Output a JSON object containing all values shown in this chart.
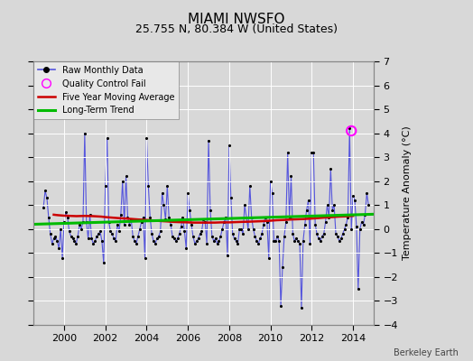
{
  "title": "MIAMI NWSFO",
  "subtitle": "25.755 N, 80.384 W (United States)",
  "credit": "Berkeley Earth",
  "ylabel": "Temperature Anomaly (°C)",
  "xlim": [
    1998.5,
    2015.0
  ],
  "ylim": [
    -4,
    7
  ],
  "yticks": [
    -4,
    -3,
    -2,
    -1,
    0,
    1,
    2,
    3,
    4,
    5,
    6,
    7
  ],
  "xticks": [
    2000,
    2002,
    2004,
    2006,
    2008,
    2010,
    2012,
    2014
  ],
  "background_color": "#d8d8d8",
  "plot_bg_color": "#d8d8d8",
  "grid_color": "#ffffff",
  "raw_color": "#5555dd",
  "dot_color": "#000000",
  "moving_avg_color": "#cc0000",
  "trend_color": "#00bb00",
  "qc_fail_color": "#ff00ff",
  "raw_monthly": [
    [
      1999.0,
      0.9
    ],
    [
      1999.083,
      1.6
    ],
    [
      1999.167,
      1.3
    ],
    [
      1999.25,
      0.5
    ],
    [
      1999.333,
      -0.2
    ],
    [
      1999.417,
      -0.6
    ],
    [
      1999.5,
      -0.4
    ],
    [
      1999.583,
      -0.3
    ],
    [
      1999.667,
      -0.5
    ],
    [
      1999.75,
      -0.8
    ],
    [
      1999.833,
      0.0
    ],
    [
      1999.917,
      -1.2
    ],
    [
      2000.0,
      0.3
    ],
    [
      2000.083,
      0.7
    ],
    [
      2000.167,
      0.5
    ],
    [
      2000.25,
      -0.1
    ],
    [
      2000.333,
      -0.3
    ],
    [
      2000.417,
      -0.4
    ],
    [
      2000.5,
      -0.5
    ],
    [
      2000.583,
      -0.6
    ],
    [
      2000.667,
      -0.3
    ],
    [
      2000.75,
      0.2
    ],
    [
      2000.833,
      0.0
    ],
    [
      2000.917,
      0.3
    ],
    [
      2001.0,
      4.0
    ],
    [
      2001.083,
      0.3
    ],
    [
      2001.167,
      -0.4
    ],
    [
      2001.25,
      0.6
    ],
    [
      2001.333,
      -0.4
    ],
    [
      2001.417,
      -0.6
    ],
    [
      2001.5,
      -0.5
    ],
    [
      2001.583,
      -0.3
    ],
    [
      2001.667,
      -0.2
    ],
    [
      2001.75,
      -0.1
    ],
    [
      2001.833,
      -0.5
    ],
    [
      2001.917,
      -1.4
    ],
    [
      2002.0,
      1.8
    ],
    [
      2002.083,
      3.8
    ],
    [
      2002.167,
      0.3
    ],
    [
      2002.25,
      -0.1
    ],
    [
      2002.333,
      -0.2
    ],
    [
      2002.417,
      -0.4
    ],
    [
      2002.5,
      -0.5
    ],
    [
      2002.583,
      0.2
    ],
    [
      2002.667,
      -0.1
    ],
    [
      2002.75,
      0.6
    ],
    [
      2002.833,
      2.0
    ],
    [
      2002.917,
      0.2
    ],
    [
      2003.0,
      2.2
    ],
    [
      2003.083,
      0.5
    ],
    [
      2003.167,
      0.2
    ],
    [
      2003.25,
      0.4
    ],
    [
      2003.333,
      -0.3
    ],
    [
      2003.417,
      -0.5
    ],
    [
      2003.5,
      -0.6
    ],
    [
      2003.583,
      -0.3
    ],
    [
      2003.667,
      0.0
    ],
    [
      2003.75,
      0.3
    ],
    [
      2003.833,
      0.5
    ],
    [
      2003.917,
      -1.2
    ],
    [
      2004.0,
      3.8
    ],
    [
      2004.083,
      1.8
    ],
    [
      2004.167,
      0.5
    ],
    [
      2004.25,
      -0.2
    ],
    [
      2004.333,
      -0.5
    ],
    [
      2004.417,
      -0.6
    ],
    [
      2004.5,
      -0.4
    ],
    [
      2004.583,
      -0.3
    ],
    [
      2004.667,
      -0.1
    ],
    [
      2004.75,
      1.5
    ],
    [
      2004.833,
      1.0
    ],
    [
      2004.917,
      0.4
    ],
    [
      2005.0,
      1.8
    ],
    [
      2005.083,
      0.5
    ],
    [
      2005.167,
      0.2
    ],
    [
      2005.25,
      -0.3
    ],
    [
      2005.333,
      -0.4
    ],
    [
      2005.417,
      -0.5
    ],
    [
      2005.5,
      -0.4
    ],
    [
      2005.583,
      -0.2
    ],
    [
      2005.667,
      0.1
    ],
    [
      2005.75,
      0.5
    ],
    [
      2005.833,
      -0.1
    ],
    [
      2005.917,
      -0.8
    ],
    [
      2006.0,
      1.5
    ],
    [
      2006.083,
      0.8
    ],
    [
      2006.167,
      0.2
    ],
    [
      2006.25,
      -0.3
    ],
    [
      2006.333,
      -0.6
    ],
    [
      2006.417,
      -0.5
    ],
    [
      2006.5,
      -0.4
    ],
    [
      2006.583,
      -0.2
    ],
    [
      2006.667,
      -0.1
    ],
    [
      2006.75,
      0.4
    ],
    [
      2006.833,
      0.3
    ],
    [
      2006.917,
      -0.6
    ],
    [
      2007.0,
      3.7
    ],
    [
      2007.083,
      0.8
    ],
    [
      2007.167,
      -0.3
    ],
    [
      2007.25,
      -0.5
    ],
    [
      2007.333,
      -0.4
    ],
    [
      2007.417,
      -0.6
    ],
    [
      2007.5,
      -0.5
    ],
    [
      2007.583,
      -0.3
    ],
    [
      2007.667,
      0.0
    ],
    [
      2007.75,
      0.3
    ],
    [
      2007.833,
      0.5
    ],
    [
      2007.917,
      -1.1
    ],
    [
      2008.0,
      3.5
    ],
    [
      2008.083,
      1.3
    ],
    [
      2008.167,
      -0.2
    ],
    [
      2008.25,
      -0.4
    ],
    [
      2008.333,
      -0.5
    ],
    [
      2008.417,
      -0.6
    ],
    [
      2008.5,
      0.0
    ],
    [
      2008.583,
      0.0
    ],
    [
      2008.667,
      -0.2
    ],
    [
      2008.75,
      1.0
    ],
    [
      2008.833,
      0.5
    ],
    [
      2008.917,
      0.0
    ],
    [
      2009.0,
      1.8
    ],
    [
      2009.083,
      0.5
    ],
    [
      2009.167,
      0.0
    ],
    [
      2009.25,
      -0.3
    ],
    [
      2009.333,
      -0.5
    ],
    [
      2009.417,
      -0.6
    ],
    [
      2009.5,
      -0.4
    ],
    [
      2009.583,
      -0.2
    ],
    [
      2009.667,
      0.2
    ],
    [
      2009.75,
      0.5
    ],
    [
      2009.833,
      0.3
    ],
    [
      2009.917,
      -1.2
    ],
    [
      2010.0,
      2.0
    ],
    [
      2010.083,
      1.5
    ],
    [
      2010.167,
      -0.5
    ],
    [
      2010.25,
      -0.5
    ],
    [
      2010.333,
      -0.3
    ],
    [
      2010.417,
      -0.5
    ],
    [
      2010.5,
      -3.2
    ],
    [
      2010.583,
      -1.6
    ],
    [
      2010.667,
      -0.3
    ],
    [
      2010.75,
      0.3
    ],
    [
      2010.833,
      3.2
    ],
    [
      2010.917,
      0.5
    ],
    [
      2011.0,
      2.2
    ],
    [
      2011.083,
      -0.2
    ],
    [
      2011.167,
      -0.5
    ],
    [
      2011.25,
      -0.4
    ],
    [
      2011.333,
      -0.5
    ],
    [
      2011.417,
      -0.6
    ],
    [
      2011.5,
      -3.3
    ],
    [
      2011.583,
      -0.5
    ],
    [
      2011.667,
      0.2
    ],
    [
      2011.75,
      0.8
    ],
    [
      2011.833,
      1.2
    ],
    [
      2011.917,
      -0.6
    ],
    [
      2012.0,
      3.2
    ],
    [
      2012.083,
      3.2
    ],
    [
      2012.167,
      0.2
    ],
    [
      2012.25,
      -0.2
    ],
    [
      2012.333,
      -0.4
    ],
    [
      2012.417,
      -0.5
    ],
    [
      2012.5,
      -0.3
    ],
    [
      2012.583,
      -0.2
    ],
    [
      2012.667,
      0.3
    ],
    [
      2012.75,
      1.0
    ],
    [
      2012.833,
      0.5
    ],
    [
      2012.917,
      2.5
    ],
    [
      2013.0,
      0.8
    ],
    [
      2013.083,
      1.0
    ],
    [
      2013.167,
      -0.2
    ],
    [
      2013.25,
      -0.3
    ],
    [
      2013.333,
      -0.5
    ],
    [
      2013.417,
      -0.4
    ],
    [
      2013.5,
      -0.2
    ],
    [
      2013.583,
      0.0
    ],
    [
      2013.667,
      0.2
    ],
    [
      2013.75,
      0.5
    ],
    [
      2013.833,
      4.2
    ],
    [
      2013.917,
      0.0
    ],
    [
      2014.0,
      1.4
    ],
    [
      2014.083,
      1.2
    ],
    [
      2014.167,
      0.1
    ],
    [
      2014.25,
      -2.5
    ],
    [
      2014.333,
      0.0
    ],
    [
      2014.417,
      0.3
    ],
    [
      2014.5,
      0.2
    ],
    [
      2014.583,
      0.6
    ],
    [
      2014.667,
      1.5
    ],
    [
      2014.75,
      1.0
    ]
  ],
  "qc_fail_points": [
    [
      2013.917,
      4.1
    ]
  ],
  "moving_avg": [
    [
      1999.5,
      0.6
    ],
    [
      1999.7,
      0.58
    ],
    [
      2000.0,
      0.56
    ],
    [
      2000.3,
      0.55
    ],
    [
      2000.6,
      0.54
    ],
    [
      2001.0,
      0.55
    ],
    [
      2001.4,
      0.54
    ],
    [
      2001.8,
      0.52
    ],
    [
      2002.0,
      0.5
    ],
    [
      2002.3,
      0.48
    ],
    [
      2002.6,
      0.46
    ],
    [
      2003.0,
      0.44
    ],
    [
      2003.3,
      0.42
    ],
    [
      2003.6,
      0.4
    ],
    [
      2004.0,
      0.38
    ],
    [
      2004.3,
      0.36
    ],
    [
      2004.6,
      0.34
    ],
    [
      2005.0,
      0.32
    ],
    [
      2005.3,
      0.3
    ],
    [
      2005.6,
      0.29
    ],
    [
      2006.0,
      0.28
    ],
    [
      2006.3,
      0.27
    ],
    [
      2006.6,
      0.27
    ],
    [
      2007.0,
      0.27
    ],
    [
      2007.3,
      0.27
    ],
    [
      2007.6,
      0.28
    ],
    [
      2008.0,
      0.28
    ],
    [
      2008.3,
      0.29
    ],
    [
      2008.6,
      0.3
    ],
    [
      2009.0,
      0.31
    ],
    [
      2009.3,
      0.32
    ],
    [
      2009.6,
      0.33
    ],
    [
      2010.0,
      0.35
    ],
    [
      2010.3,
      0.37
    ],
    [
      2010.6,
      0.38
    ],
    [
      2011.0,
      0.4
    ],
    [
      2011.3,
      0.41
    ],
    [
      2011.6,
      0.42
    ],
    [
      2012.0,
      0.44
    ],
    [
      2012.3,
      0.46
    ],
    [
      2012.6,
      0.48
    ],
    [
      2013.0,
      0.5
    ],
    [
      2013.3,
      0.52
    ],
    [
      2013.6,
      0.53
    ],
    [
      2014.0,
      0.55
    ]
  ],
  "trend_line": [
    [
      1998.5,
      0.2
    ],
    [
      2015.0,
      0.62
    ]
  ],
  "title_fontsize": 11,
  "subtitle_fontsize": 9,
  "tick_fontsize": 8,
  "credit_fontsize": 7
}
